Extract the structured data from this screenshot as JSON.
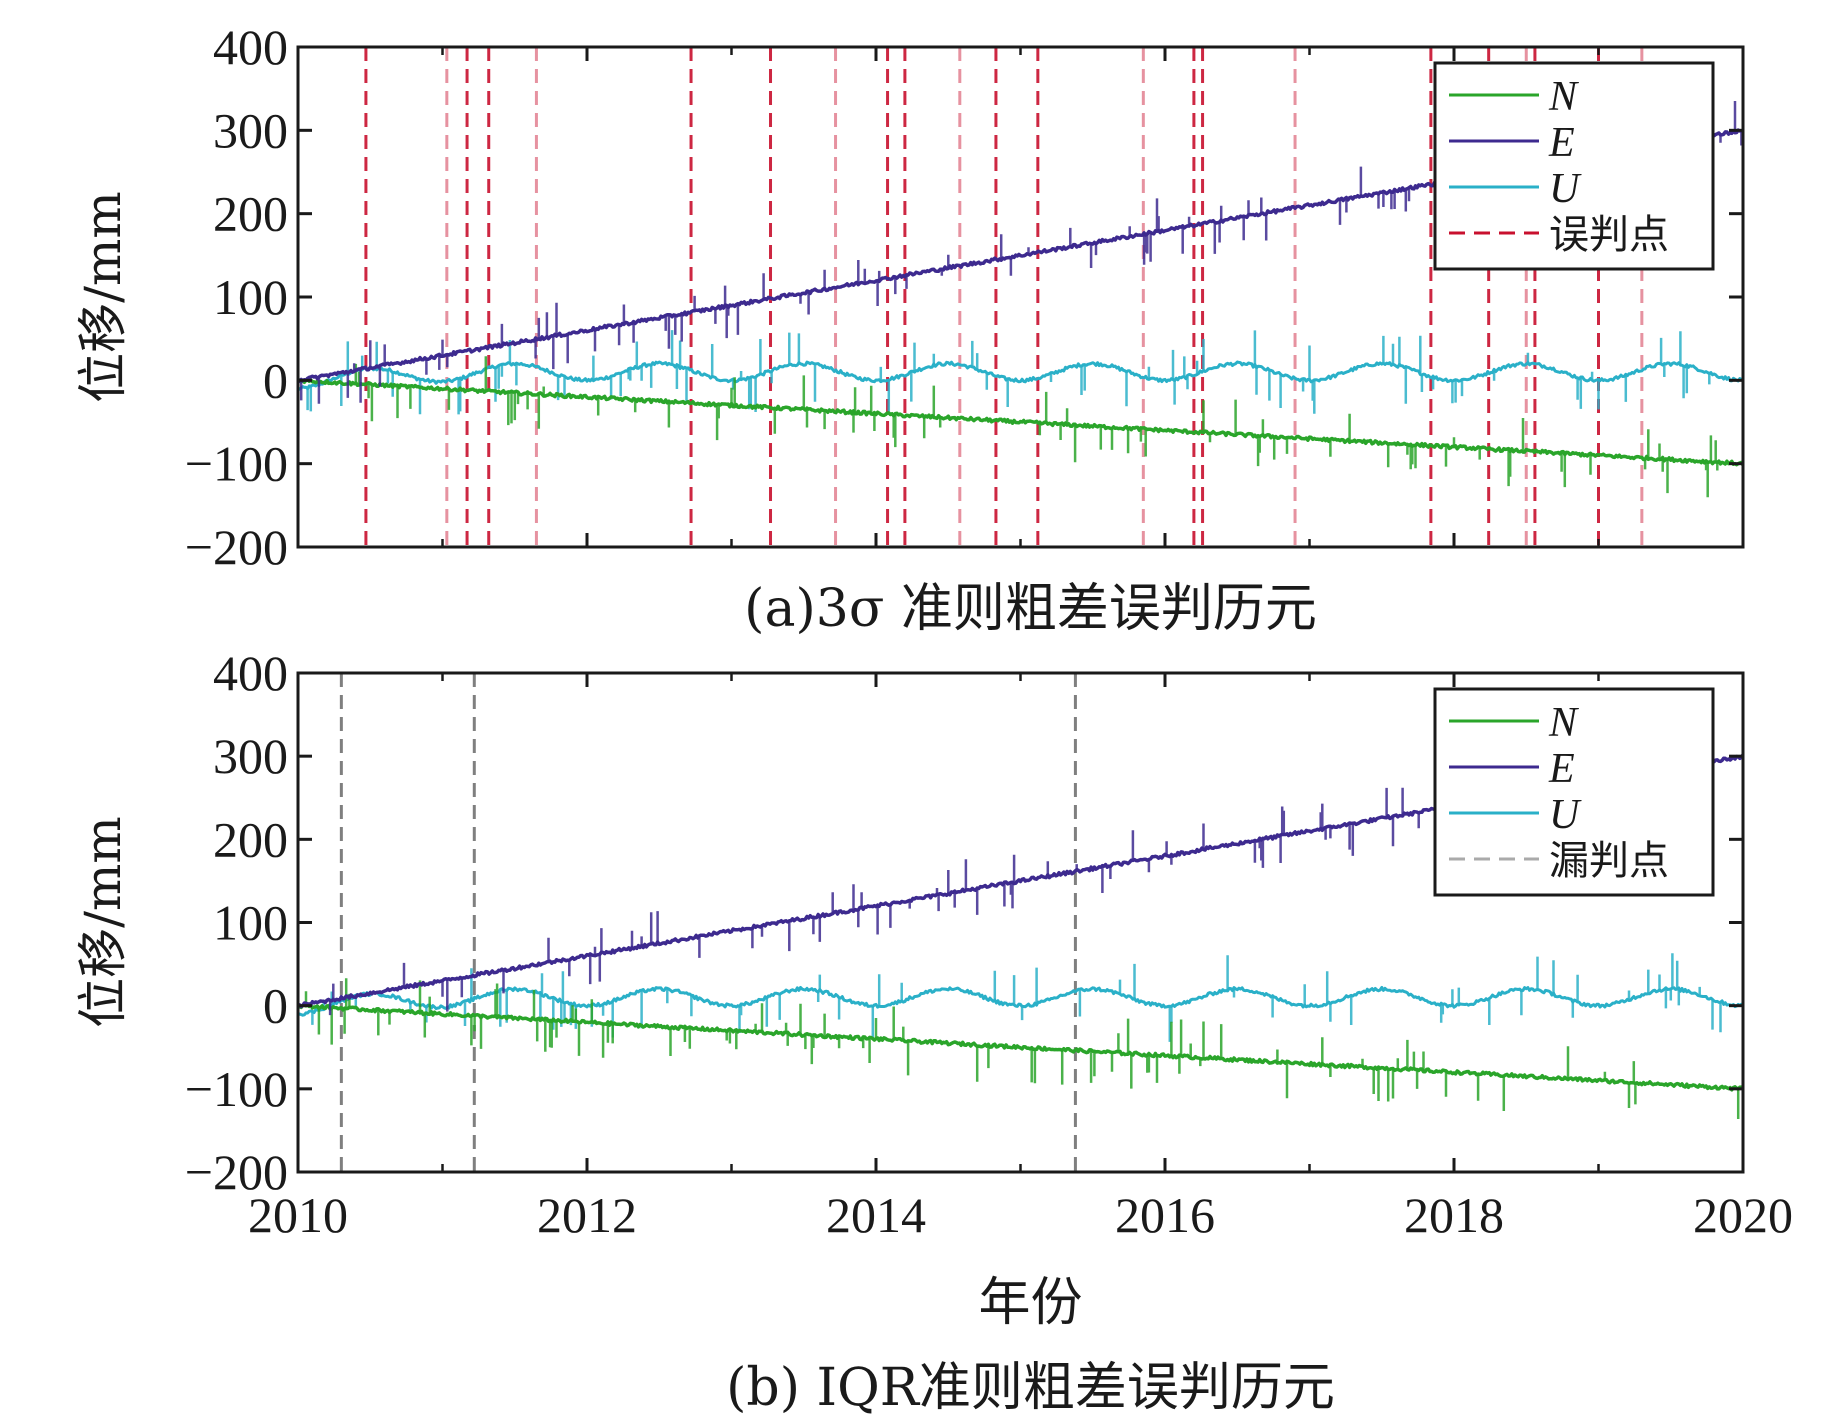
{
  "colors": {
    "N": "#2aa52a",
    "E": "#3d2a8f",
    "U": "#2ab0c8",
    "misjudge": "#c8102e",
    "missed": "#555555",
    "axis": "#1a1a1a"
  },
  "chart_data": [
    {
      "id": "a",
      "type": "line",
      "title": "(a)3σ 准则粗差误判历元",
      "xlabel": "",
      "ylabel": "位移/mm",
      "xlim": [
        2010,
        2020
      ],
      "ylim": [
        -200,
        400
      ],
      "xticks": [
        2010,
        2012,
        2014,
        2016,
        2018,
        2020
      ],
      "yticks": [
        400,
        300,
        200,
        100,
        0,
        -100,
        -200
      ],
      "ytick_labels": [
        "400",
        "300",
        "200",
        "100",
        "0",
        "−100",
        "−200"
      ],
      "show_x_tick_labels": false,
      "legend_position": "top-right",
      "series": [
        {
          "name": "N",
          "label": "N",
          "x": [
            2010,
            2020
          ],
          "y": [
            0,
            -100
          ]
        },
        {
          "name": "E",
          "label": "E",
          "x": [
            2010,
            2020
          ],
          "y": [
            0,
            300
          ]
        },
        {
          "name": "U",
          "label": "U",
          "mean": 10,
          "seasonal_amplitude": 10
        }
      ],
      "marker_line": {
        "label": "误判点",
        "style": "dashed"
      },
      "marked_epochs": [
        2010.47,
        2011.03,
        2011.17,
        2011.32,
        2011.65,
        2012.72,
        2013.27,
        2013.72,
        2014.08,
        2014.2,
        2014.58,
        2014.83,
        2015.12,
        2015.85,
        2016.2,
        2016.26,
        2016.9,
        2017.84,
        2018.24,
        2018.5,
        2018.56,
        2019.0,
        2019.3
      ]
    },
    {
      "id": "b",
      "type": "line",
      "title": "(b) IQR准则粗差误判历元",
      "xlabel": "年份",
      "ylabel": "位移/mm",
      "xlim": [
        2010,
        2020
      ],
      "ylim": [
        -200,
        400
      ],
      "xticks": [
        2010,
        2012,
        2014,
        2016,
        2018,
        2020
      ],
      "xtick_labels": [
        "2010",
        "2012",
        "2014",
        "2016",
        "2018",
        "2020"
      ],
      "yticks": [
        400,
        300,
        200,
        100,
        0,
        -100,
        -200
      ],
      "ytick_labels": [
        "400",
        "300",
        "200",
        "100",
        "0",
        "−100",
        "−200"
      ],
      "show_x_tick_labels": true,
      "legend_position": "top-right",
      "series": [
        {
          "name": "N",
          "label": "N",
          "x": [
            2010,
            2020
          ],
          "y": [
            0,
            -100
          ]
        },
        {
          "name": "E",
          "label": "E",
          "x": [
            2010,
            2020
          ],
          "y": [
            0,
            300
          ]
        },
        {
          "name": "U",
          "label": "U",
          "mean": 10,
          "seasonal_amplitude": 10
        }
      ],
      "marker_line": {
        "label": "漏判点",
        "style": "dashed"
      },
      "marked_epochs": [
        2010.3,
        2011.22,
        2015.38
      ]
    }
  ]
}
